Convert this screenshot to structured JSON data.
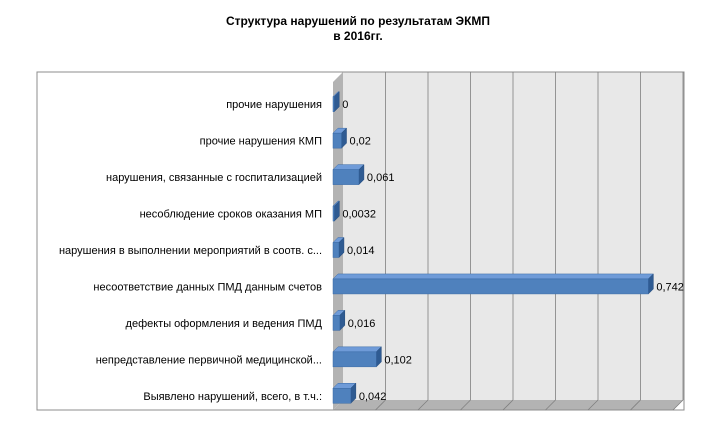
{
  "chart_data": {
    "type": "bar",
    "orientation": "horizontal",
    "title": "Структура нарушений по результатам ЭКМП",
    "subtitle": "в  2016гг.",
    "categories": [
      "прочие нарушения",
      "прочие нарушения КМП",
      "нарушения, связанные с госпитализацией",
      "несоблюдение сроков оказания МП",
      "нарушения в выполнении  мероприятий в соотв. с...",
      "несоответствие данных ПМД данным счетов",
      "дефекты оформления и ведения ПМД",
      "непредставление первичной медицинской...",
      "Выявлено нарушений, всего, в т.ч.:"
    ],
    "values": [
      0,
      0.02,
      0.061,
      0.0032,
      0.014,
      0.742,
      0.016,
      0.102,
      0.042
    ],
    "value_labels": [
      "0",
      "0,02",
      "0,061",
      "0,0032",
      "0,014",
      "0,742",
      "0,016",
      "0,102",
      "0,042"
    ],
    "xlim": [
      0,
      0.8
    ],
    "grid": true,
    "legend": "none",
    "colors": {
      "bar_front": "#4F81BD",
      "bar_top": "#6F9BD8",
      "bar_side": "#2F5B92",
      "plot_back": "#E8E8E8",
      "plot_floor": "#B3B3B3",
      "gridline": "#7F7F7F"
    }
  }
}
